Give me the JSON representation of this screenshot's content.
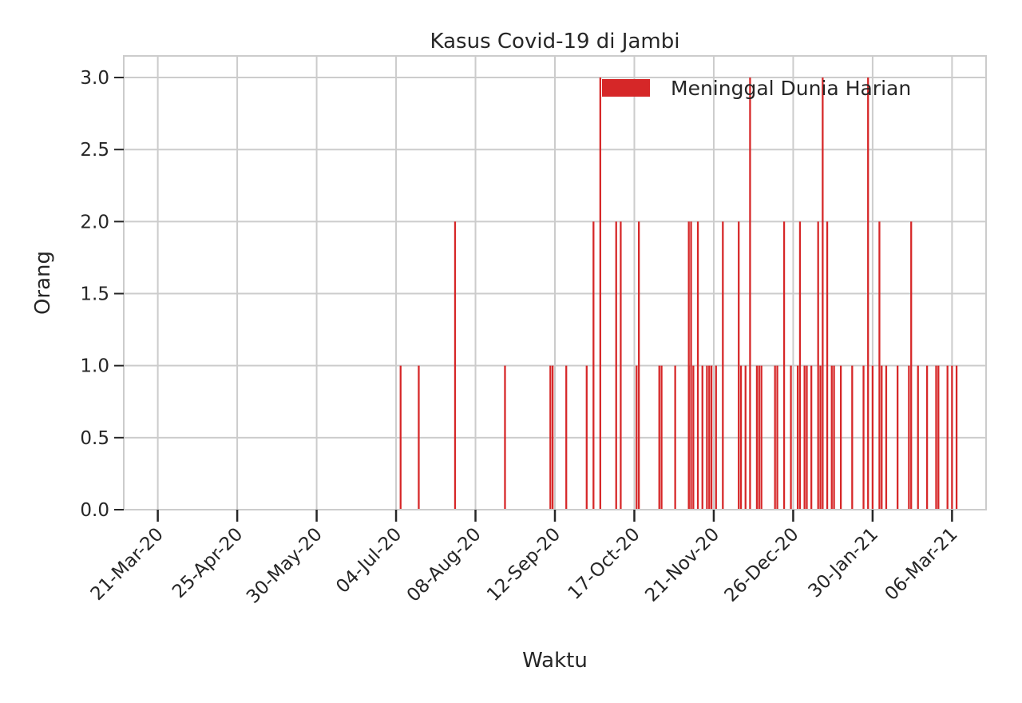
{
  "chart_data": {
    "type": "bar",
    "title": "Kasus Covid-19 di Jambi",
    "xlabel": "Waktu",
    "ylabel": "Orang",
    "ylim": [
      0,
      3.15
    ],
    "xlim": [
      "2020-03-06",
      "2021-03-21"
    ],
    "yticks": [
      0.0,
      0.5,
      1.0,
      1.5,
      2.0,
      2.5,
      3.0
    ],
    "ytick_labels": [
      "0.0",
      "0.5",
      "1.0",
      "1.5",
      "2.0",
      "2.5",
      "3.0"
    ],
    "xtick_dates": [
      "2020-03-21",
      "2020-04-25",
      "2020-05-30",
      "2020-07-04",
      "2020-08-08",
      "2020-09-12",
      "2020-10-17",
      "2020-11-21",
      "2020-12-26",
      "2021-01-30",
      "2021-03-06"
    ],
    "xtick_labels": [
      "21-Mar-20",
      "25-Apr-20",
      "30-May-20",
      "04-Jul-20",
      "08-Aug-20",
      "12-Sep-20",
      "17-Oct-20",
      "21-Nov-20",
      "26-Dec-20",
      "30-Jan-21",
      "06-Mar-21"
    ],
    "grid": true,
    "legend_position": "top-right",
    "series": [
      {
        "name": "Meninggal Dunia Harian",
        "color": "#d62728",
        "dates": [
          "2020-07-06",
          "2020-07-14",
          "2020-07-30",
          "2020-08-21",
          "2020-09-10",
          "2020-09-11",
          "2020-09-17",
          "2020-09-26",
          "2020-09-29",
          "2020-10-02",
          "2020-10-09",
          "2020-10-11",
          "2020-10-18",
          "2020-10-19",
          "2020-10-28",
          "2020-10-29",
          "2020-11-04",
          "2020-11-10",
          "2020-11-10",
          "2020-11-11",
          "2020-11-12",
          "2020-11-14",
          "2020-11-16",
          "2020-11-18",
          "2020-11-19",
          "2020-11-20",
          "2020-11-22",
          "2020-11-25",
          "2020-12-02",
          "2020-12-03",
          "2020-12-05",
          "2020-12-07",
          "2020-12-10",
          "2020-12-11",
          "2020-12-12",
          "2020-12-18",
          "2020-12-19",
          "2020-12-22",
          "2020-12-25",
          "2020-12-28",
          "2020-12-29",
          "2020-12-31",
          "2021-01-01",
          "2021-01-03",
          "2021-01-06",
          "2021-01-07",
          "2021-01-08",
          "2021-01-10",
          "2021-01-12",
          "2021-01-13",
          "2021-01-16",
          "2021-01-21",
          "2021-01-26",
          "2021-01-28",
          "2021-01-30",
          "2021-02-02",
          "2021-02-03",
          "2021-02-05",
          "2021-02-10",
          "2021-02-15",
          "2021-02-16",
          "2021-02-19",
          "2021-02-23",
          "2021-02-27",
          "2021-02-28",
          "2021-03-04",
          "2021-03-06",
          "2021-03-08"
        ],
        "values": [
          1,
          1,
          2,
          1,
          1,
          1,
          1,
          1,
          2,
          3,
          2,
          2,
          1,
          2,
          1,
          1,
          1,
          1,
          2,
          2,
          1,
          2,
          1,
          1,
          1,
          1,
          1,
          2,
          2,
          1,
          1,
          3,
          1,
          1,
          1,
          1,
          1,
          2,
          1,
          1,
          2,
          1,
          1,
          1,
          2,
          1,
          3,
          2,
          1,
          1,
          1,
          1,
          1,
          3,
          1,
          2,
          1,
          1,
          1,
          1,
          2,
          1,
          1,
          1,
          1,
          1,
          1,
          1
        ]
      }
    ]
  }
}
